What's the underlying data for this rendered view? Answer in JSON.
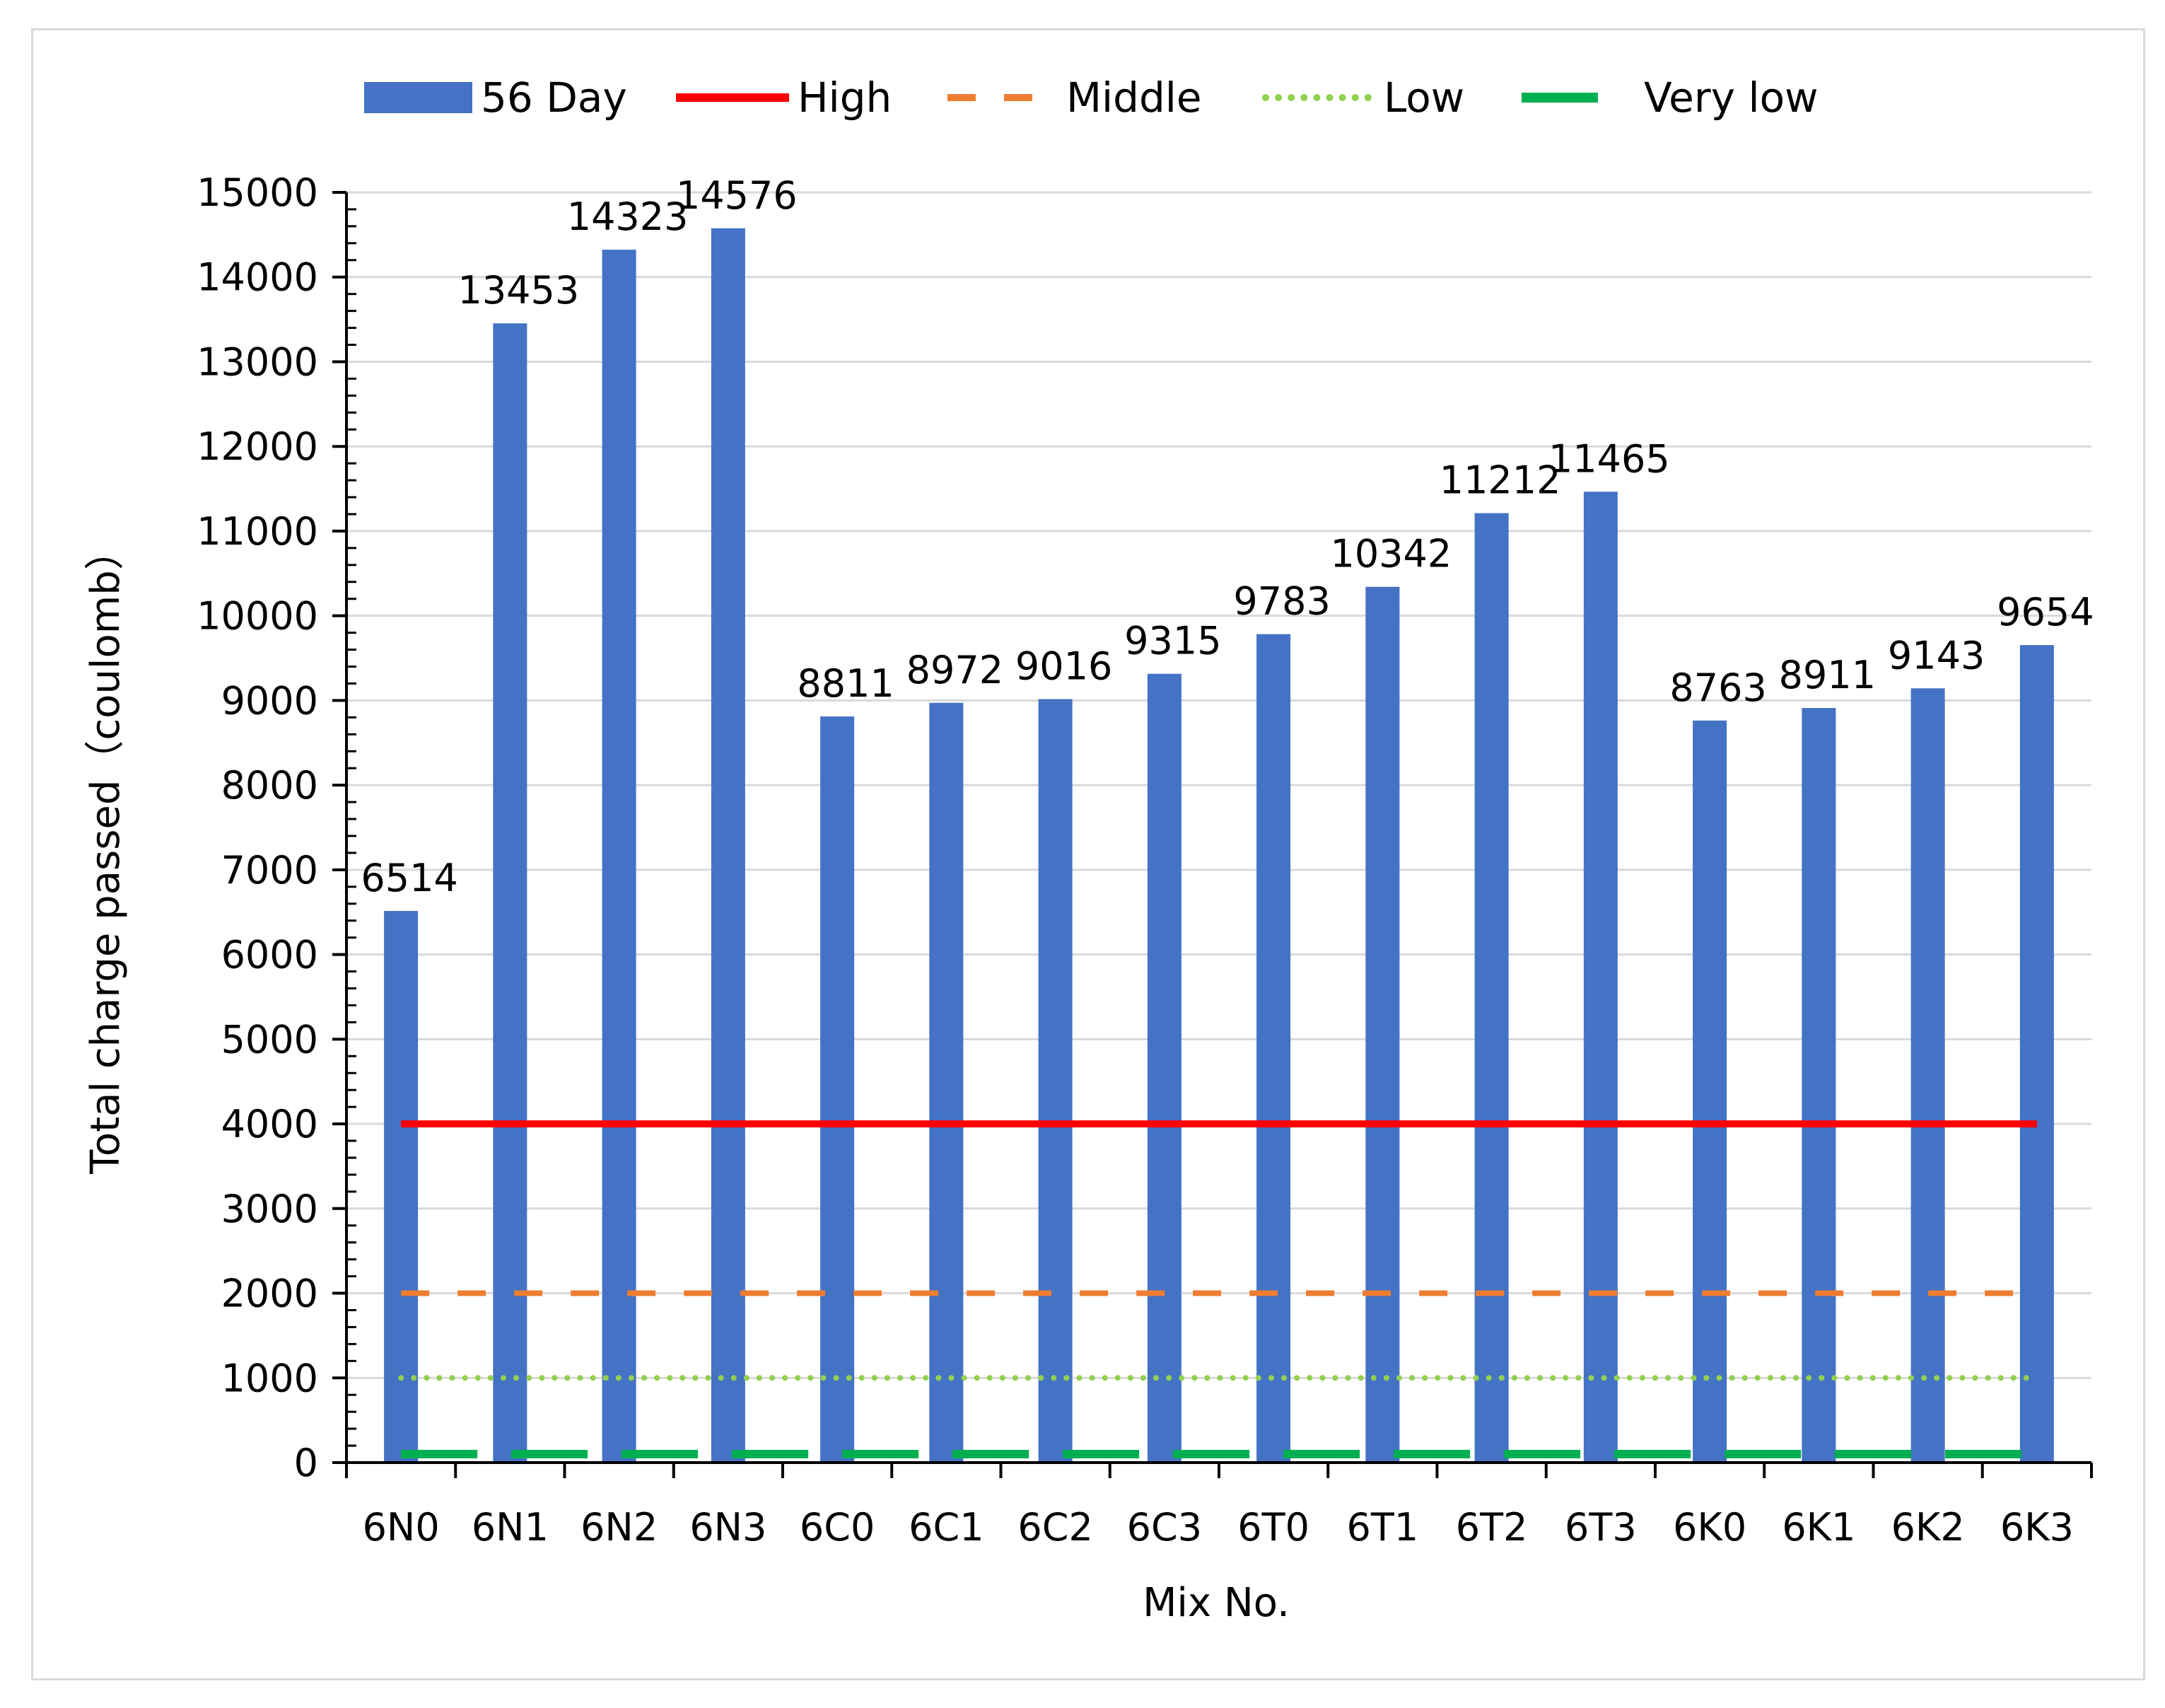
{
  "chart_data": {
    "type": "bar",
    "title": "",
    "xlabel": "Mix No.",
    "ylabel": "Total charge passed（coulomb）",
    "ylim": [
      0,
      15000
    ],
    "yticks": [
      "0",
      "1000",
      "2000",
      "3000",
      "4000",
      "5000",
      "6000",
      "7000",
      "8000",
      "9000",
      "10000",
      "11000",
      "12000",
      "13000",
      "14000",
      "15000"
    ],
    "grid": true,
    "legend_position": "top",
    "categories": [
      "6N0",
      "6N1",
      "6N2",
      "6N3",
      "6C0",
      "6C1",
      "6C2",
      "6C3",
      "6T0",
      "6T1",
      "6T2",
      "6T3",
      "6K0",
      "6K1",
      "6K2",
      "6K3"
    ],
    "series": [
      {
        "name": "56 Day",
        "kind": "bar",
        "color": "#4472c4",
        "values": [
          6514,
          13453,
          14323,
          14576,
          8811,
          8972,
          9016,
          9315,
          9783,
          10342,
          11212,
          11465,
          8763,
          8911,
          9143,
          9654
        ],
        "labels": [
          "6514",
          "13453",
          "14323",
          "14576",
          "8811",
          "8972",
          "9016",
          "9315",
          "9783",
          "10342",
          "11212",
          "11465",
          "8763",
          "8911",
          "9143",
          "9654"
        ]
      },
      {
        "name": "High",
        "kind": "line",
        "style": "solid",
        "color": "#ff0000",
        "value": 4000
      },
      {
        "name": "Middle",
        "kind": "line",
        "style": "dashed",
        "color": "#ed7d31",
        "value": 2000
      },
      {
        "name": "Low",
        "kind": "line",
        "style": "dotted",
        "color": "#92d050",
        "value": 1000
      },
      {
        "name": "Very low",
        "kind": "line",
        "style": "dashed",
        "color": "#00b050",
        "value": 100
      }
    ]
  }
}
